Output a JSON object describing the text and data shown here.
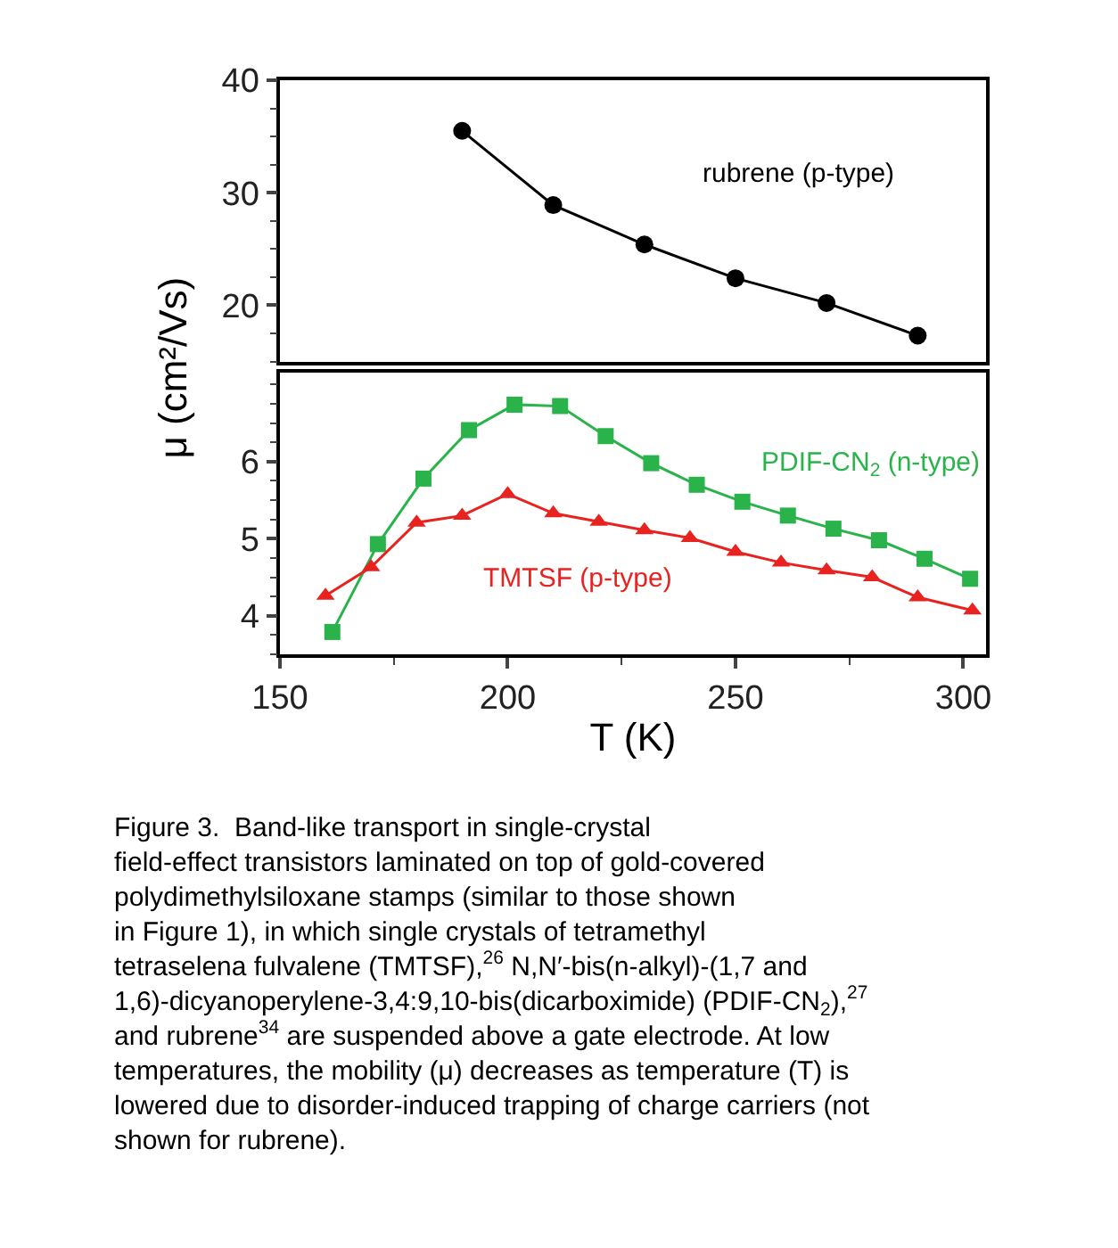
{
  "chart_data": [
    {
      "type": "line",
      "ylabel": "μ (cm²/Vs)",
      "xlim": [
        150,
        305
      ],
      "ylim": [
        15,
        40
      ],
      "yticks": [
        20,
        30,
        40
      ],
      "tick_labels": "y",
      "legend": false,
      "series": [
        {
          "name": "rubrene (p-type)",
          "color": "#000000",
          "marker": "circle",
          "x": [
            190,
            210,
            230,
            250,
            270,
            290
          ],
          "values": [
            35.5,
            28.9,
            25.4,
            22.4,
            20.2,
            17.3
          ]
        }
      ]
    },
    {
      "type": "line",
      "xlabel": "T (K)",
      "xlim": [
        150,
        305
      ],
      "xticks": [
        150,
        200,
        250,
        300
      ],
      "ylim": [
        3.5,
        7.15
      ],
      "yticks": [
        4,
        5,
        6
      ],
      "legend": false,
      "series": [
        {
          "name": "PDIF-CN$_{2}$ (n-type)",
          "color": "#2ab34a",
          "marker": "square",
          "x": [
            161.5,
            171.5,
            181.5,
            191.5,
            201.5,
            211.5,
            221.5,
            231.5,
            241.5,
            251.5,
            261.5,
            271.5,
            281.5,
            291.5,
            301.5
          ],
          "values": [
            3.79,
            4.93,
            5.78,
            6.41,
            6.74,
            6.72,
            6.33,
            5.98,
            5.7,
            5.48,
            5.3,
            5.13,
            4.98,
            4.74,
            4.48
          ]
        },
        {
          "name": "TMTSF (p-type)",
          "color": "#e8231f",
          "marker": "triangle",
          "x": [
            160,
            170,
            180,
            190,
            200,
            210,
            220,
            230,
            240,
            250,
            260,
            270,
            280,
            290,
            302
          ],
          "values": [
            4.26,
            4.63,
            5.21,
            5.3,
            5.58,
            5.33,
            5.22,
            5.11,
            5.01,
            4.83,
            4.69,
            4.59,
            4.5,
            4.24,
            4.07
          ]
        }
      ],
      "annotations": [
        "Figure 3.  Band-like transport in single-crystal\nfield-effect transistors laminated on top of gold-covered\npolydimethylsiloxane stamps (similar to those shown\nin Figure 1), in which single crystals of tetramethyl\ntetraselena fulvalene (TMTSF),$^{26}$ N,N′-bis(n-alkyl)-(1,7 and\n1,6)-dicyanoperylene-3,4:9,10-bis(dicarboximide) (PDIF-CN$_{2}$),$^{27}$\nand rubrene$^{34}$ are suspended above a gate electrode. At low\ntemperatures, the mobility (μ) decreases as temperature (T) is\nlowered due to disorder-induced trapping of charge carriers (not\nshown for rubrene)."
      ]
    }
  ]
}
